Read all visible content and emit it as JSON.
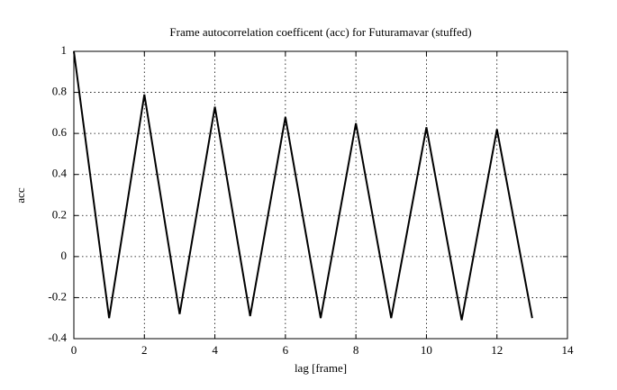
{
  "chart_data": {
    "type": "line",
    "title": "Frame autocorrelation coefficent (acc) for Futuramavar (stuffed)",
    "x_label": "lag [frame]",
    "y_label": "acc",
    "x": [
      0,
      1,
      2,
      3,
      4,
      5,
      6,
      7,
      8,
      9,
      10,
      11,
      12,
      13
    ],
    "series": [
      {
        "color": "#000000",
        "values": [
          1,
          -0.3,
          0.79,
          -0.28,
          0.73,
          -0.29,
          0.68,
          -0.3,
          0.65,
          -0.3,
          0.63,
          -0.31,
          0.62,
          -0.3
        ]
      }
    ],
    "xlim": [
      0,
      14
    ],
    "xticks": [
      0,
      2,
      4,
      6,
      8,
      10,
      12,
      14
    ],
    "ylim": [
      -0.4,
      1
    ],
    "yticks": [
      -0.4,
      -0.2,
      0,
      0.2,
      0.4,
      0.6,
      0.8,
      1
    ],
    "grid": true
  }
}
